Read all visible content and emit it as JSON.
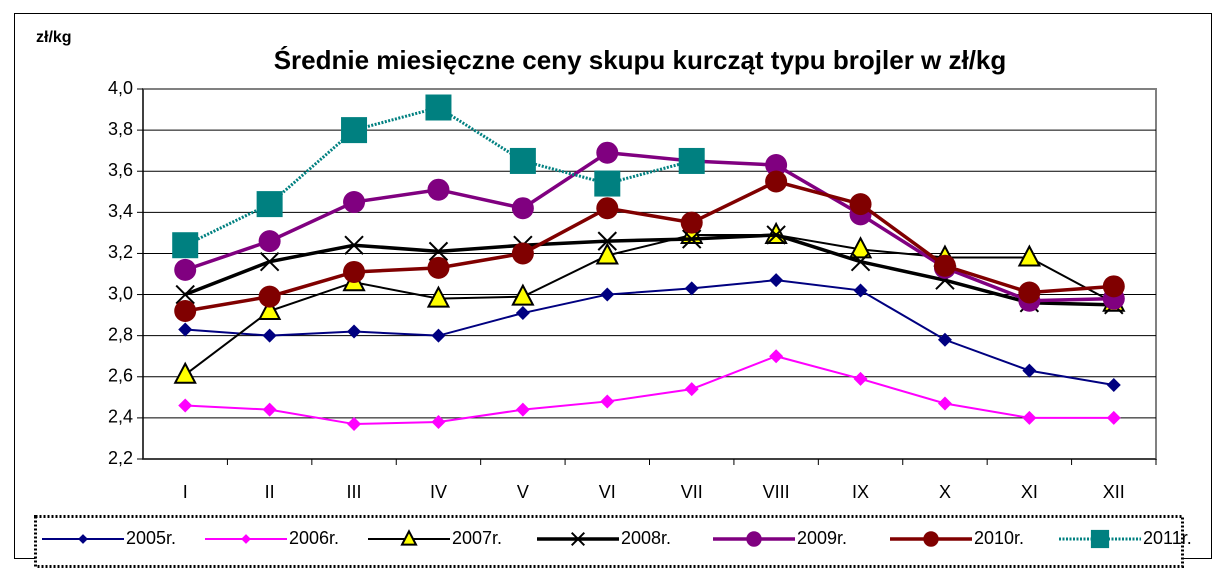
{
  "chart_data": {
    "type": "line",
    "title": "Średnie miesięczne ceny skupu kurcząt typu brojler w zł/kg",
    "y_label": "zł/kg",
    "categories": [
      "I",
      "II",
      "III",
      "IV",
      "V",
      "VI",
      "VII",
      "VIII",
      "IX",
      "X",
      "XI",
      "XII"
    ],
    "ylim": [
      2.2,
      4.0
    ],
    "yticks": [
      {
        "value": 2.2,
        "label": "2,2"
      },
      {
        "value": 2.4,
        "label": "2,4"
      },
      {
        "value": 2.6,
        "label": "2,6"
      },
      {
        "value": 2.8,
        "label": "2,8"
      },
      {
        "value": 3.0,
        "label": "3,0"
      },
      {
        "value": 3.2,
        "label": "3,2"
      },
      {
        "value": 3.4,
        "label": "3,4"
      },
      {
        "value": 3.6,
        "label": "3,6"
      },
      {
        "value": 3.8,
        "label": "3,8"
      },
      {
        "value": 4.0,
        "label": "4,0"
      }
    ],
    "grid": true,
    "legend": "bottom",
    "series": [
      {
        "name": "2005r.",
        "color": "#000080",
        "marker": "diamond",
        "line_width": 2,
        "line_style": "solid",
        "values": [
          2.83,
          2.8,
          2.82,
          2.8,
          2.91,
          3.0,
          3.03,
          3.07,
          3.02,
          2.78,
          2.63,
          2.56
        ]
      },
      {
        "name": "2006r.",
        "color": "#ff00ff",
        "marker": "diamond",
        "line_width": 2,
        "line_style": "solid",
        "values": [
          2.46,
          2.44,
          2.37,
          2.38,
          2.44,
          2.48,
          2.54,
          2.7,
          2.59,
          2.47,
          2.4,
          2.4
        ]
      },
      {
        "name": "2007r.",
        "color": "#000000",
        "marker": "triangle",
        "line_width": 2,
        "line_style": "solid",
        "values": [
          2.61,
          2.92,
          3.06,
          2.98,
          2.99,
          3.19,
          3.29,
          3.29,
          3.22,
          3.18,
          3.18,
          2.96
        ]
      },
      {
        "name": "2008r.",
        "color": "#000000",
        "marker": "x",
        "line_width": 3.5,
        "line_style": "solid",
        "values": [
          3.0,
          3.16,
          3.24,
          3.21,
          3.24,
          3.26,
          3.27,
          3.29,
          3.16,
          3.07,
          2.96,
          2.95
        ]
      },
      {
        "name": "2009r.",
        "color": "#800080",
        "marker": "circle",
        "line_width": 3.5,
        "line_style": "solid",
        "values": [
          3.12,
          3.26,
          3.45,
          3.51,
          3.42,
          3.69,
          3.65,
          3.63,
          3.39,
          3.13,
          2.97,
          2.98
        ]
      },
      {
        "name": "2010r.",
        "color": "#800000",
        "marker": "circle",
        "line_width": 3.5,
        "line_style": "solid",
        "values": [
          2.92,
          2.99,
          3.11,
          3.13,
          3.2,
          3.42,
          3.35,
          3.55,
          3.44,
          3.14,
          3.01,
          3.04
        ]
      },
      {
        "name": "2011r.",
        "color": "#008080",
        "marker": "square",
        "line_width": 3,
        "line_style": "dotted",
        "values": [
          3.24,
          3.44,
          3.8,
          3.91,
          3.65,
          3.54,
          3.65,
          null,
          null,
          null,
          null,
          null
        ]
      }
    ]
  }
}
